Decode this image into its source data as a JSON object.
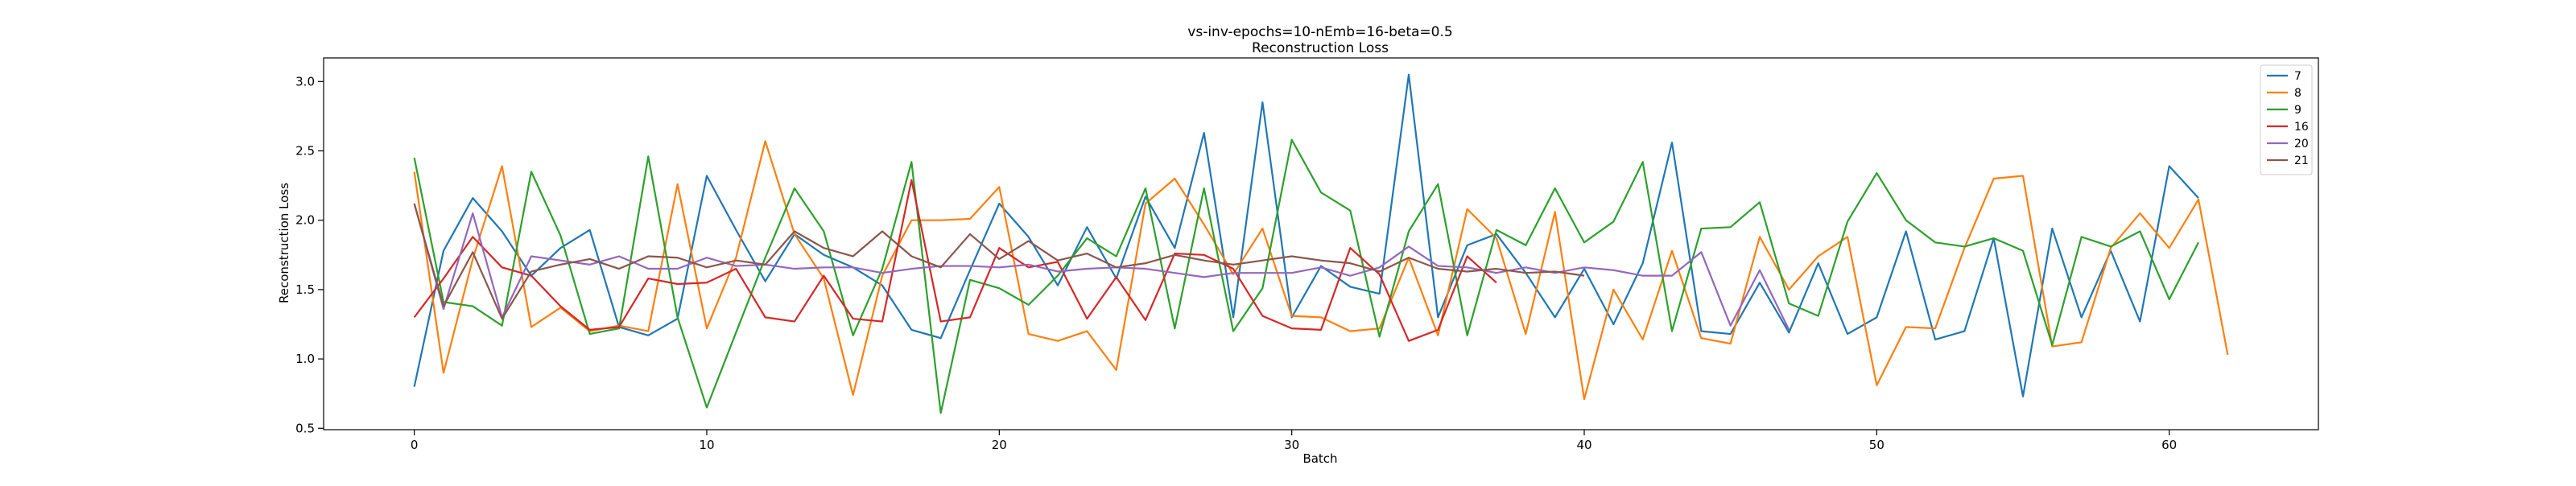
{
  "chart_data": {
    "type": "line",
    "title": "vs-inv-epochs=10-nEmb=16-beta=0.5",
    "subtitle": "Reconstruction Loss",
    "xlabel": "Batch",
    "ylabel": "Reconstruction Loss",
    "xlim": [
      -3.1,
      65.1
    ],
    "ylim": [
      0.49,
      3.17
    ],
    "xticks": [
      0,
      10,
      20,
      30,
      40,
      50,
      60
    ],
    "yticks": [
      0.5,
      1.0,
      1.5,
      2.0,
      2.5,
      3.0
    ],
    "grid": false,
    "legend_position": "top-right",
    "series": [
      {
        "name": "7",
        "color": "#1f77b4",
        "values": [
          0.8,
          1.78,
          2.16,
          1.92,
          1.6,
          1.8,
          1.93,
          1.23,
          1.17,
          1.29,
          2.32,
          1.93,
          1.56,
          1.9,
          1.75,
          1.66,
          1.53,
          1.21,
          1.15,
          1.64,
          2.12,
          1.88,
          1.53,
          1.95,
          1.58,
          2.17,
          1.8,
          2.63,
          1.3,
          2.85,
          1.3,
          1.67,
          1.52,
          1.47,
          3.05,
          1.3,
          1.82,
          1.9,
          1.62,
          1.3,
          1.65,
          1.25,
          1.69,
          2.56,
          1.2,
          1.18,
          1.55,
          1.19,
          1.69,
          1.18,
          1.3,
          1.92,
          1.14,
          1.2,
          1.87,
          0.73,
          1.94,
          1.3,
          1.78,
          1.27,
          2.39,
          2.16
        ]
      },
      {
        "name": "8",
        "color": "#ff7f0e",
        "values": [
          2.35,
          0.9,
          1.72,
          2.39,
          1.23,
          1.37,
          1.2,
          1.24,
          1.2,
          2.26,
          1.22,
          1.73,
          2.57,
          1.9,
          1.58,
          0.74,
          1.6,
          2.0,
          2.0,
          2.01,
          2.24,
          1.18,
          1.13,
          1.2,
          0.92,
          2.12,
          2.3,
          1.97,
          1.61,
          1.94,
          1.31,
          1.3,
          1.2,
          1.22,
          1.73,
          1.17,
          2.08,
          1.87,
          1.18,
          2.06,
          0.71,
          1.5,
          1.14,
          1.78,
          1.15,
          1.11,
          1.88,
          1.5,
          1.74,
          1.88,
          0.81,
          1.23,
          1.22,
          1.8,
          2.3,
          2.32,
          1.09,
          1.12,
          1.8,
          2.05,
          1.8,
          2.15,
          1.03
        ]
      },
      {
        "name": "9",
        "color": "#2ca02c",
        "values": [
          2.45,
          1.41,
          1.38,
          1.24,
          2.35,
          1.89,
          1.18,
          1.22,
          2.46,
          1.3,
          0.65,
          1.19,
          1.73,
          2.23,
          1.92,
          1.17,
          1.65,
          2.42,
          0.61,
          1.57,
          1.51,
          1.39,
          1.6,
          1.87,
          1.74,
          2.23,
          1.22,
          2.23,
          1.2,
          1.51,
          2.58,
          2.2,
          2.07,
          1.16,
          1.92,
          2.26,
          1.17,
          1.93,
          1.82,
          2.23,
          1.84,
          1.99,
          2.42,
          1.2,
          1.94,
          1.95,
          2.13,
          1.4,
          1.31,
          1.99,
          2.34,
          2.0,
          1.84,
          1.81,
          1.87,
          1.78,
          1.1,
          1.88,
          1.81,
          1.92,
          1.43,
          1.84
        ]
      },
      {
        "name": "16",
        "color": "#d62728",
        "values": [
          1.3,
          1.58,
          1.88,
          1.66,
          1.6,
          1.38,
          1.21,
          1.23,
          1.58,
          1.54,
          1.55,
          1.65,
          1.3,
          1.27,
          1.6,
          1.29,
          1.27,
          2.29,
          1.27,
          1.3,
          1.8,
          1.66,
          1.7,
          1.29,
          1.59,
          1.28,
          1.76,
          1.75,
          1.65,
          1.31,
          1.22,
          1.21,
          1.8,
          1.61,
          1.13,
          1.21,
          1.74,
          1.55
        ]
      },
      {
        "name": "20",
        "color": "#9467bd",
        "values": [
          2.12,
          1.36,
          2.05,
          1.3,
          1.74,
          1.71,
          1.68,
          1.74,
          1.65,
          1.65,
          1.73,
          1.67,
          1.68,
          1.65,
          1.66,
          1.66,
          1.62,
          1.65,
          1.67,
          1.67,
          1.66,
          1.68,
          1.63,
          1.65,
          1.66,
          1.65,
          1.62,
          1.59,
          1.62,
          1.62,
          1.62,
          1.66,
          1.6,
          1.66,
          1.81,
          1.67,
          1.66,
          1.62,
          1.66,
          1.62,
          1.66,
          1.64,
          1.6,
          1.6,
          1.77,
          1.24,
          1.64,
          1.21
        ]
      },
      {
        "name": "21",
        "color": "#8c564b",
        "values": [
          2.12,
          1.38,
          1.77,
          1.29,
          1.63,
          1.68,
          1.72,
          1.65,
          1.74,
          1.73,
          1.66,
          1.71,
          1.68,
          1.92,
          1.8,
          1.74,
          1.92,
          1.74,
          1.66,
          1.9,
          1.72,
          1.85,
          1.71,
          1.76,
          1.66,
          1.69,
          1.75,
          1.71,
          1.68,
          1.71,
          1.74,
          1.71,
          1.69,
          1.63,
          1.73,
          1.65,
          1.63,
          1.65,
          1.62,
          1.63,
          1.6
        ]
      }
    ]
  }
}
